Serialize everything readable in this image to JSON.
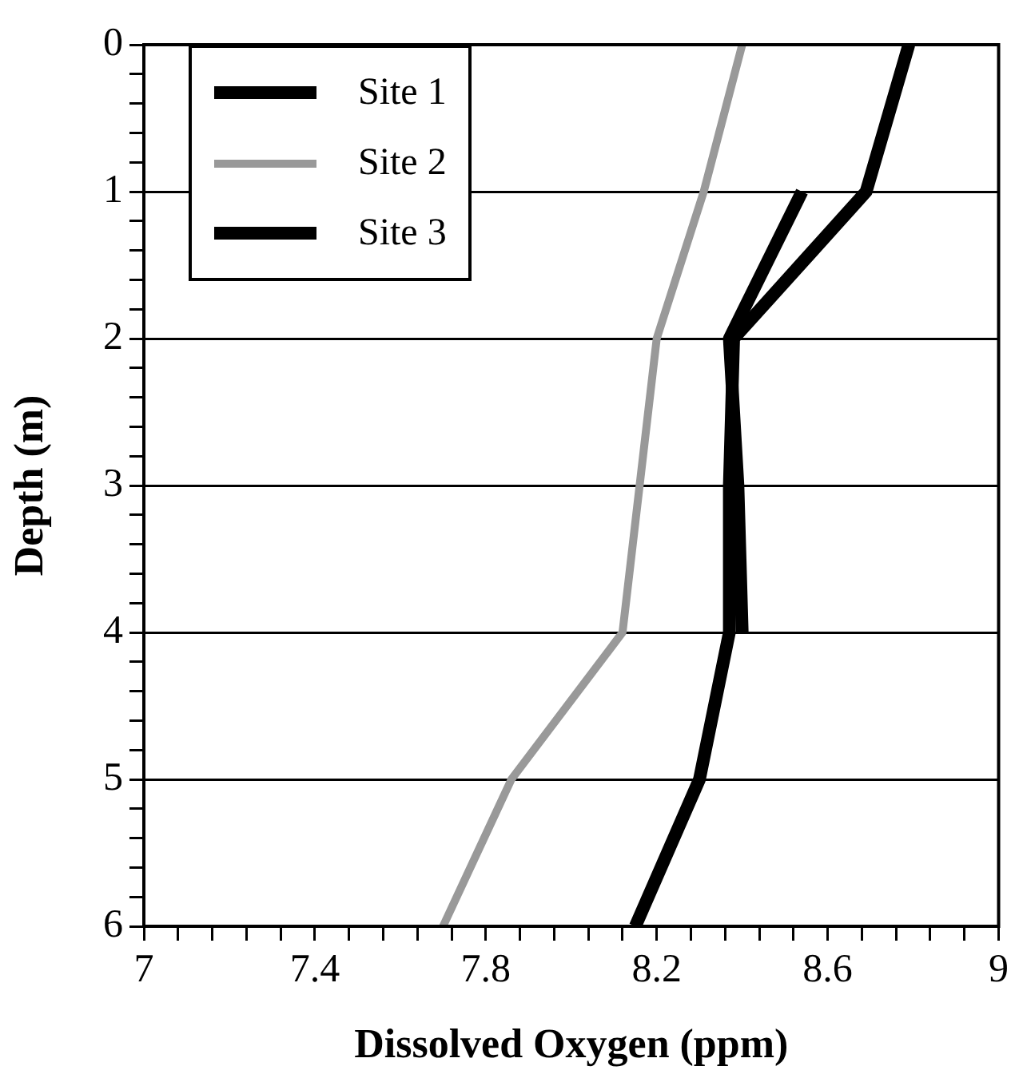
{
  "chart_data": {
    "type": "line",
    "xlabel": "Dissolved Oxygen (ppm)",
    "ylabel": "Depth (m)",
    "xlim": [
      7,
      9
    ],
    "xticks": [
      7,
      {
        "value": 7.08,
        "label": null
      },
      {
        "value": 7.16,
        "label": null
      },
      {
        "value": 7.24,
        "label": null
      },
      {
        "value": 7.32,
        "label": null
      },
      7.4,
      {
        "value": 7.48,
        "label": null
      },
      {
        "value": 7.56,
        "label": null
      },
      {
        "value": 7.64,
        "label": null
      },
      {
        "value": 7.72,
        "label": null
      },
      7.8,
      {
        "value": 7.88,
        "label": null
      },
      {
        "value": 7.96,
        "label": null
      },
      {
        "value": 8.04,
        "label": null
      },
      {
        "value": 8.12,
        "label": null
      },
      8.2,
      {
        "value": 8.28,
        "label": null
      },
      {
        "value": 8.36,
        "label": null
      },
      {
        "value": 8.44,
        "label": null
      },
      {
        "value": 8.52,
        "label": null
      },
      8.6,
      {
        "value": 8.68,
        "label": null
      },
      {
        "value": 8.76,
        "label": null
      },
      {
        "value": 8.84,
        "label": null
      },
      {
        "value": 8.92,
        "label": null
      },
      9
    ],
    "ylim": [
      6,
      0
    ],
    "yticks": [
      0,
      {
        "value": 0.2,
        "label": null
      },
      {
        "value": 0.4,
        "label": null
      },
      {
        "value": 0.6,
        "label": null
      },
      {
        "value": 0.8,
        "label": null
      },
      1,
      {
        "value": 1.2,
        "label": null
      },
      {
        "value": 1.4,
        "label": null
      },
      {
        "value": 1.6,
        "label": null
      },
      {
        "value": 1.8,
        "label": null
      },
      2,
      {
        "value": 2.2,
        "label": null
      },
      {
        "value": 2.4,
        "label": null
      },
      {
        "value": 2.6,
        "label": null
      },
      {
        "value": 2.8,
        "label": null
      },
      3,
      {
        "value": 3.2,
        "label": null
      },
      {
        "value": 3.4,
        "label": null
      },
      {
        "value": 3.6,
        "label": null
      },
      {
        "value": 3.8,
        "label": null
      },
      4,
      {
        "value": 4.2,
        "label": null
      },
      {
        "value": 4.4,
        "label": null
      },
      {
        "value": 4.6,
        "label": null
      },
      {
        "value": 4.8,
        "label": null
      },
      5,
      {
        "value": 5.2,
        "label": null
      },
      {
        "value": 5.4,
        "label": null
      },
      {
        "value": 5.6,
        "label": null
      },
      {
        "value": 5.8,
        "label": null
      },
      6
    ],
    "grid": "y",
    "legend": "top left",
    "marker": "none",
    "line_style": "solid",
    "series": [
      {
        "name": "Site 1",
        "color": "#000000",
        "x": [
          8.79,
          8.69,
          8.38,
          8.37,
          8.37,
          8.3,
          8.15
        ],
        "values": [
          0,
          1,
          2,
          3,
          4,
          5,
          6
        ]
      },
      {
        "name": "Site 2",
        "color": "#999999",
        "x": [
          8.4,
          8.31,
          8.2,
          8.16,
          8.12,
          7.86,
          7.7
        ],
        "values": [
          0,
          1,
          2,
          3,
          4,
          5,
          6
        ]
      },
      {
        "name": "Site 3",
        "color": "#000000",
        "x": [
          8.54,
          8.37,
          8.39,
          8.4
        ],
        "values": [
          1,
          2,
          3,
          4
        ]
      }
    ]
  }
}
